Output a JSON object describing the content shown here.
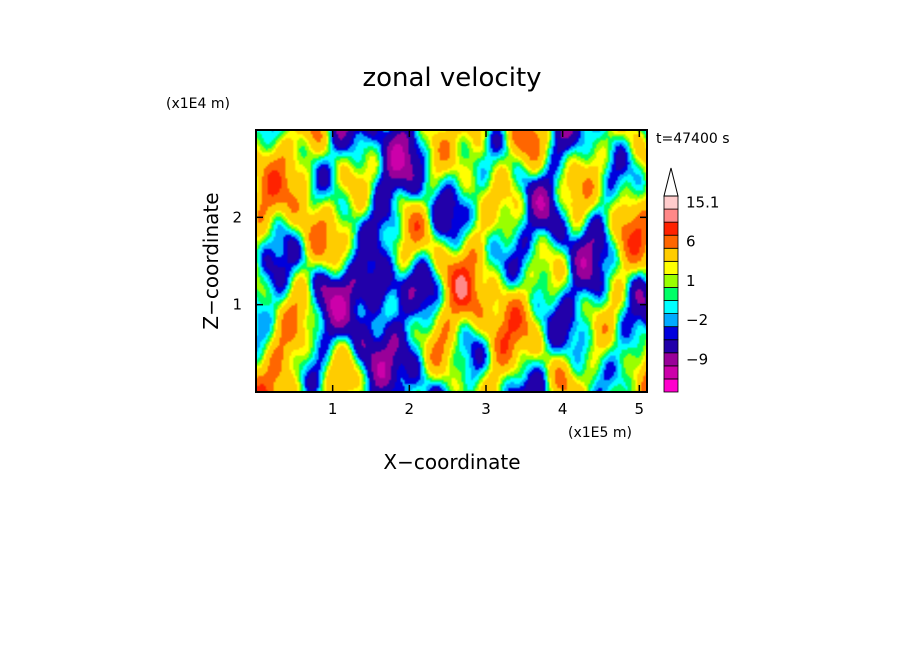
{
  "chart_data": {
    "type": "heatmap",
    "title": "zonal velocity",
    "xlabel": "X−coordinate",
    "ylabel": "Z−coordinate",
    "x_scale_label": "(x1E5 m)",
    "y_scale_label": "(x1E4 m)",
    "time_label": "t=47400 s",
    "xlim": [
      0,
      5.1
    ],
    "ylim": [
      0,
      3.0
    ],
    "x_ticks": [
      {
        "value": 1,
        "label": "1"
      },
      {
        "value": 2,
        "label": "2"
      },
      {
        "value": 3,
        "label": "3"
      },
      {
        "value": 4,
        "label": "4"
      },
      {
        "value": 5,
        "label": "5"
      }
    ],
    "y_ticks": [
      {
        "value": 1,
        "label": "1"
      },
      {
        "value": 2,
        "label": "2"
      }
    ],
    "colorbar": {
      "levels": [
        -15,
        -12,
        -9,
        -6,
        -3,
        -2,
        -1,
        0,
        1,
        2,
        3,
        6,
        9,
        12,
        15.1
      ],
      "colors": [
        "#ff00cc",
        "#cc00aa",
        "#990099",
        "#2200aa",
        "#0000dd",
        "#00aaff",
        "#00ffff",
        "#00ff66",
        "#99ff00",
        "#ffff00",
        "#ffcc00",
        "#ff6600",
        "#ff2200",
        "#ff8888",
        "#ffcccc"
      ],
      "extend_color": "#ffffff",
      "labels": [
        {
          "value": 15.1,
          "label": "15.1"
        },
        {
          "value": 6,
          "label": "6"
        },
        {
          "value": 1,
          "label": "1"
        },
        {
          "value": -2,
          "label": "−2"
        },
        {
          "value": -9,
          "label": "−9"
        }
      ]
    }
  }
}
